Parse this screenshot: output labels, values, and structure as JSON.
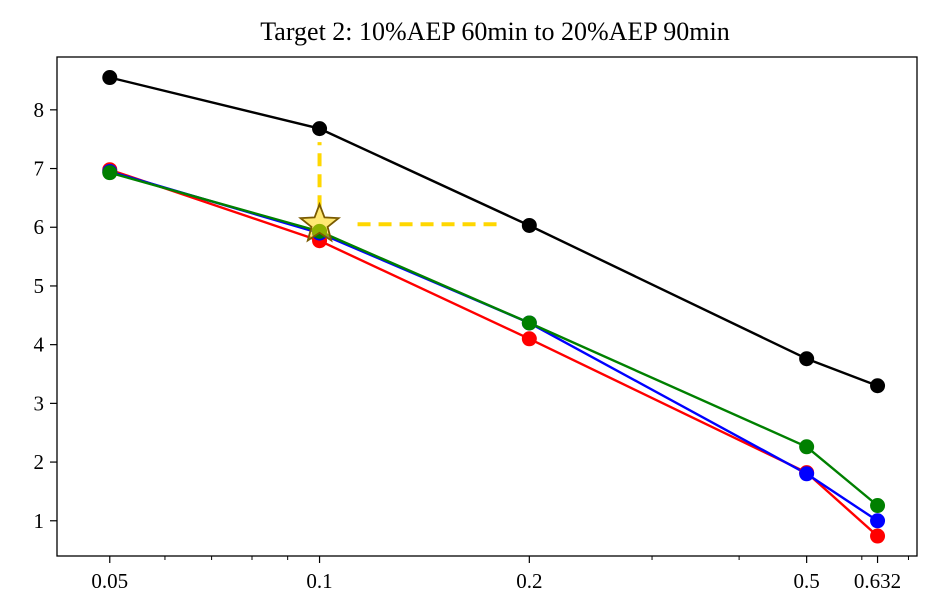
{
  "chart_data": {
    "type": "line",
    "title": "Target 2: 10%AEP 60min to 20%AEP 90min",
    "xscale": "log",
    "x": [
      0.05,
      0.1,
      0.2,
      0.5,
      0.632
    ],
    "xticks": [
      0.05,
      0.1,
      0.2,
      0.5,
      0.632
    ],
    "xtick_labels": [
      "0.05",
      "0.1",
      "0.2",
      "0.5",
      "0.632"
    ],
    "xlim": [
      0.042,
      0.72
    ],
    "ylim": [
      0.4,
      8.9
    ],
    "yticks": [
      1,
      2,
      3,
      4,
      5,
      6,
      7,
      8
    ],
    "ytick_labels": [
      "1",
      "2",
      "3",
      "4",
      "5",
      "6",
      "7",
      "8"
    ],
    "grid": false,
    "series": [
      {
        "color": "#000000",
        "values": [
          8.55,
          7.68,
          6.03,
          3.76,
          3.3
        ]
      },
      {
        "color": "#ff0000",
        "values": [
          6.98,
          5.77,
          4.1,
          1.82,
          0.74
        ]
      },
      {
        "color": "#0000ff",
        "values": [
          6.95,
          5.9,
          4.37,
          1.8,
          1.0
        ]
      },
      {
        "color": "#008000",
        "values": [
          6.93,
          5.93,
          4.37,
          2.26,
          1.26
        ]
      }
    ],
    "annotation": {
      "marker": "star",
      "x": 0.1,
      "y": 6.05,
      "vertical_guide_to_y": 7.45,
      "horizontal_guide_to_x": 0.18,
      "guide_color": "#ffd700",
      "marker_edge_color": "#7a5a00"
    }
  }
}
